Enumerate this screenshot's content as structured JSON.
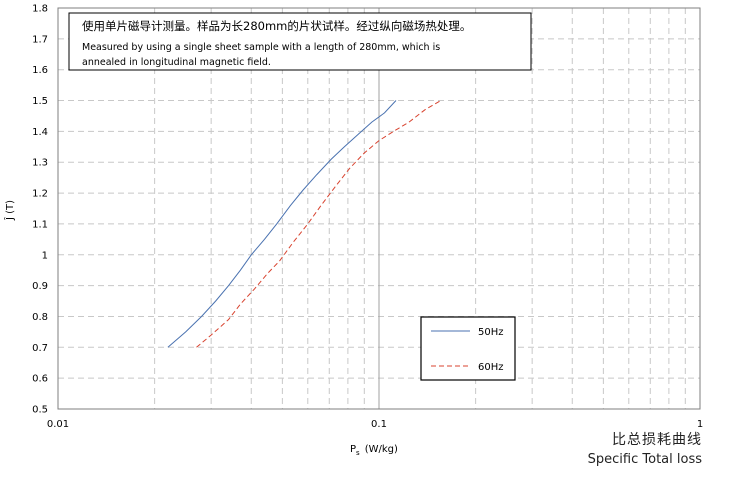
{
  "chart_data": {
    "type": "line",
    "note_line1": "使用单片磁导计测量。样品为长280mm的片状试样。经过纵向磁场热处理。",
    "note_line2": "Measured by using a single sheet sample with a length of 280mm, which is",
    "note_line3": "annealed in longitudinal magnetic field.",
    "xlabel_main": "P",
    "xlabel_sub": "s",
    "xlabel_unit": "(W/kg)",
    "ylabel": "Ĵ (T)",
    "xscale": "log",
    "xlim": [
      0.01,
      1
    ],
    "ylim": [
      0.5,
      1.8
    ],
    "grid": true,
    "legend_position": "lower-right inside plot",
    "x_tick_labels": [
      "0.01",
      "0.1",
      "1"
    ],
    "y_tick_labels": [
      "0.5",
      "0.6",
      "0.7",
      "0.8",
      "0.9",
      "1",
      "1.1",
      "1.2",
      "1.3",
      "1.4",
      "1.5",
      "1.6",
      "1.7",
      "1.8"
    ],
    "series": [
      {
        "name": "50Hz",
        "color": "#4a72b0",
        "dash": "solid",
        "x": [
          0.022,
          0.025,
          0.028,
          0.031,
          0.034,
          0.037,
          0.04,
          0.044,
          0.048,
          0.053,
          0.058,
          0.064,
          0.071,
          0.078,
          0.086,
          0.095,
          0.104,
          0.113
        ],
        "y": [
          0.7,
          0.75,
          0.8,
          0.85,
          0.9,
          0.95,
          1.0,
          1.05,
          1.1,
          1.16,
          1.21,
          1.26,
          1.31,
          1.35,
          1.39,
          1.43,
          1.46,
          1.5
        ]
      },
      {
        "name": "60Hz",
        "color": "#d8432f",
        "dash": "dashed",
        "x": [
          0.027,
          0.03,
          0.034,
          0.037,
          0.041,
          0.045,
          0.049,
          0.054,
          0.06,
          0.066,
          0.073,
          0.081,
          0.09,
          0.1,
          0.111,
          0.124,
          0.139,
          0.156
        ],
        "y": [
          0.7,
          0.74,
          0.79,
          0.84,
          0.89,
          0.94,
          0.98,
          1.04,
          1.1,
          1.16,
          1.22,
          1.28,
          1.33,
          1.37,
          1.4,
          1.43,
          1.47,
          1.5
        ]
      }
    ]
  },
  "caption": {
    "cn": "比总损耗曲线",
    "en": "Specific Total loss"
  }
}
